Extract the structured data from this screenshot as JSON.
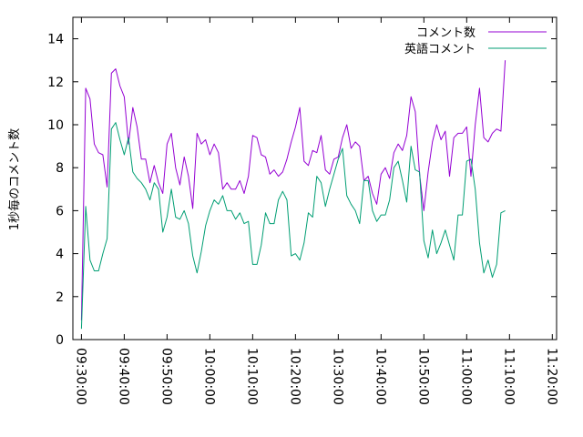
{
  "chart_data": {
    "type": "line",
    "ylabel": "1秒毎のコメント数",
    "xlabel": "",
    "ylim": [
      0,
      15
    ],
    "yticks": [
      0,
      2,
      4,
      6,
      8,
      10,
      12,
      14
    ],
    "xlim": [
      "09:28:00",
      "11:21:00"
    ],
    "xticks": [
      "09:30:00",
      "09:40:00",
      "09:50:00",
      "10:00:00",
      "10:10:00",
      "10:20:00",
      "10:30:00",
      "10:40:00",
      "10:50:00",
      "11:00:00",
      "11:10:00",
      "11:20:00"
    ],
    "legend_position": "top-right",
    "grid": false,
    "series": [
      {
        "name": "コメント数",
        "color": "#9400d3",
        "points": [
          [
            "09:30:00",
            0.9
          ],
          [
            "09:31:00",
            11.7
          ],
          [
            "09:32:00",
            11.2
          ],
          [
            "09:33:00",
            9.1
          ],
          [
            "09:34:00",
            8.7
          ],
          [
            "09:35:00",
            8.6
          ],
          [
            "09:36:00",
            7.1
          ],
          [
            "09:37:00",
            12.4
          ],
          [
            "09:38:00",
            12.6
          ],
          [
            "09:39:00",
            11.8
          ],
          [
            "09:40:00",
            11.3
          ],
          [
            "09:41:00",
            9.1
          ],
          [
            "09:42:00",
            10.8
          ],
          [
            "09:43:00",
            9.9
          ],
          [
            "09:44:00",
            8.4
          ],
          [
            "09:45:00",
            8.4
          ],
          [
            "09:46:00",
            7.3
          ],
          [
            "09:47:00",
            8.1
          ],
          [
            "09:48:00",
            7.3
          ],
          [
            "09:49:00",
            6.8
          ],
          [
            "09:50:00",
            9.1
          ],
          [
            "09:51:00",
            9.6
          ],
          [
            "09:52:00",
            8.0
          ],
          [
            "09:53:00",
            7.2
          ],
          [
            "09:54:00",
            8.5
          ],
          [
            "09:55:00",
            7.6
          ],
          [
            "09:56:00",
            6.1
          ],
          [
            "09:57:00",
            9.6
          ],
          [
            "09:58:00",
            9.1
          ],
          [
            "09:59:00",
            9.3
          ],
          [
            "10:00:00",
            8.6
          ],
          [
            "10:01:00",
            9.1
          ],
          [
            "10:02:00",
            8.7
          ],
          [
            "10:03:00",
            7.0
          ],
          [
            "10:04:00",
            7.3
          ],
          [
            "10:05:00",
            7.0
          ],
          [
            "10:06:00",
            7.0
          ],
          [
            "10:07:00",
            7.4
          ],
          [
            "10:08:00",
            6.8
          ],
          [
            "10:09:00",
            7.6
          ],
          [
            "10:10:00",
            9.5
          ],
          [
            "10:11:00",
            9.4
          ],
          [
            "10:12:00",
            8.6
          ],
          [
            "10:13:00",
            8.5
          ],
          [
            "10:14:00",
            7.7
          ],
          [
            "10:15:00",
            7.9
          ],
          [
            "10:16:00",
            7.6
          ],
          [
            "10:17:00",
            7.8
          ],
          [
            "10:18:00",
            8.4
          ],
          [
            "10:19:00",
            9.2
          ],
          [
            "10:20:00",
            9.9
          ],
          [
            "10:21:00",
            10.8
          ],
          [
            "10:22:00",
            8.3
          ],
          [
            "10:23:00",
            8.1
          ],
          [
            "10:24:00",
            8.8
          ],
          [
            "10:25:00",
            8.7
          ],
          [
            "10:26:00",
            9.5
          ],
          [
            "10:27:00",
            7.9
          ],
          [
            "10:28:00",
            7.7
          ],
          [
            "10:29:00",
            8.4
          ],
          [
            "10:30:00",
            8.5
          ],
          [
            "10:31:00",
            9.4
          ],
          [
            "10:32:00",
            10.0
          ],
          [
            "10:33:00",
            8.9
          ],
          [
            "10:34:00",
            9.2
          ],
          [
            "10:35:00",
            9.0
          ],
          [
            "10:36:00",
            7.4
          ],
          [
            "10:37:00",
            7.6
          ],
          [
            "10:38:00",
            6.8
          ],
          [
            "10:39:00",
            6.3
          ],
          [
            "10:40:00",
            7.7
          ],
          [
            "10:41:00",
            8.0
          ],
          [
            "10:42:00",
            7.5
          ],
          [
            "10:43:00",
            8.7
          ],
          [
            "10:44:00",
            9.1
          ],
          [
            "10:45:00",
            8.8
          ],
          [
            "10:46:00",
            9.5
          ],
          [
            "10:47:00",
            11.3
          ],
          [
            "10:48:00",
            10.6
          ],
          [
            "10:49:00",
            7.7
          ],
          [
            "10:50:00",
            6.0
          ],
          [
            "10:51:00",
            7.8
          ],
          [
            "10:52:00",
            9.2
          ],
          [
            "10:53:00",
            10.0
          ],
          [
            "10:54:00",
            9.3
          ],
          [
            "10:55:00",
            9.7
          ],
          [
            "10:56:00",
            7.6
          ],
          [
            "10:57:00",
            9.4
          ],
          [
            "10:58:00",
            9.6
          ],
          [
            "10:59:00",
            9.6
          ],
          [
            "11:00:00",
            9.9
          ],
          [
            "11:01:00",
            7.6
          ],
          [
            "11:02:00",
            10.0
          ],
          [
            "11:03:00",
            11.7
          ],
          [
            "11:04:00",
            9.4
          ],
          [
            "11:05:00",
            9.2
          ],
          [
            "11:06:00",
            9.6
          ],
          [
            "11:07:00",
            9.8
          ],
          [
            "11:08:00",
            9.7
          ],
          [
            "11:09:00",
            13.0
          ]
        ]
      },
      {
        "name": "英語コメント",
        "color": "#009e73",
        "points": [
          [
            "09:30:00",
            0.5
          ],
          [
            "09:31:00",
            6.2
          ],
          [
            "09:32:00",
            3.7
          ],
          [
            "09:33:00",
            3.2
          ],
          [
            "09:34:00",
            3.2
          ],
          [
            "09:35:00",
            4.0
          ],
          [
            "09:36:00",
            4.7
          ],
          [
            "09:37:00",
            9.8
          ],
          [
            "09:38:00",
            10.1
          ],
          [
            "09:39:00",
            9.3
          ],
          [
            "09:40:00",
            8.6
          ],
          [
            "09:41:00",
            9.4
          ],
          [
            "09:42:00",
            7.8
          ],
          [
            "09:43:00",
            7.5
          ],
          [
            "09:44:00",
            7.3
          ],
          [
            "09:45:00",
            7.0
          ],
          [
            "09:46:00",
            6.5
          ],
          [
            "09:47:00",
            7.3
          ],
          [
            "09:48:00",
            7.0
          ],
          [
            "09:49:00",
            5.0
          ],
          [
            "09:50:00",
            5.7
          ],
          [
            "09:51:00",
            7.0
          ],
          [
            "09:52:00",
            5.7
          ],
          [
            "09:53:00",
            5.6
          ],
          [
            "09:54:00",
            6.0
          ],
          [
            "09:55:00",
            5.4
          ],
          [
            "09:56:00",
            3.9
          ],
          [
            "09:57:00",
            3.1
          ],
          [
            "09:58:00",
            4.1
          ],
          [
            "09:59:00",
            5.3
          ],
          [
            "10:00:00",
            6.0
          ],
          [
            "10:01:00",
            6.5
          ],
          [
            "10:02:00",
            6.3
          ],
          [
            "10:03:00",
            6.7
          ],
          [
            "10:04:00",
            6.0
          ],
          [
            "10:05:00",
            6.0
          ],
          [
            "10:06:00",
            5.6
          ],
          [
            "10:07:00",
            5.9
          ],
          [
            "10:08:00",
            5.4
          ],
          [
            "10:09:00",
            5.5
          ],
          [
            "10:10:00",
            3.5
          ],
          [
            "10:11:00",
            3.5
          ],
          [
            "10:12:00",
            4.4
          ],
          [
            "10:13:00",
            5.9
          ],
          [
            "10:14:00",
            5.4
          ],
          [
            "10:15:00",
            5.4
          ],
          [
            "10:16:00",
            6.5
          ],
          [
            "10:17:00",
            6.9
          ],
          [
            "10:18:00",
            6.5
          ],
          [
            "10:19:00",
            3.9
          ],
          [
            "10:20:00",
            4.0
          ],
          [
            "10:21:00",
            3.7
          ],
          [
            "10:22:00",
            4.5
          ],
          [
            "10:23:00",
            5.9
          ],
          [
            "10:24:00",
            5.7
          ],
          [
            "10:25:00",
            7.6
          ],
          [
            "10:26:00",
            7.3
          ],
          [
            "10:27:00",
            6.2
          ],
          [
            "10:28:00",
            7.0
          ],
          [
            "10:29:00",
            7.7
          ],
          [
            "10:30:00",
            8.4
          ],
          [
            "10:31:00",
            8.9
          ],
          [
            "10:32:00",
            6.7
          ],
          [
            "10:33:00",
            6.3
          ],
          [
            "10:34:00",
            6.0
          ],
          [
            "10:35:00",
            5.4
          ],
          [
            "10:36:00",
            7.4
          ],
          [
            "10:37:00",
            7.4
          ],
          [
            "10:38:00",
            6.0
          ],
          [
            "10:39:00",
            5.5
          ],
          [
            "10:40:00",
            5.8
          ],
          [
            "10:41:00",
            5.8
          ],
          [
            "10:42:00",
            6.5
          ],
          [
            "10:43:00",
            8.0
          ],
          [
            "10:44:00",
            8.3
          ],
          [
            "10:45:00",
            7.4
          ],
          [
            "10:46:00",
            6.4
          ],
          [
            "10:47:00",
            9.0
          ],
          [
            "10:48:00",
            7.9
          ],
          [
            "10:49:00",
            7.8
          ],
          [
            "10:50:00",
            4.6
          ],
          [
            "10:51:00",
            3.8
          ],
          [
            "10:52:00",
            5.1
          ],
          [
            "10:53:00",
            4.0
          ],
          [
            "10:54:00",
            4.5
          ],
          [
            "10:55:00",
            5.1
          ],
          [
            "10:56:00",
            4.4
          ],
          [
            "10:57:00",
            3.7
          ],
          [
            "10:58:00",
            5.8
          ],
          [
            "10:59:00",
            5.8
          ],
          [
            "11:00:00",
            8.3
          ],
          [
            "11:01:00",
            8.4
          ],
          [
            "11:02:00",
            7.0
          ],
          [
            "11:03:00",
            4.5
          ],
          [
            "11:04:00",
            3.1
          ],
          [
            "11:05:00",
            3.7
          ],
          [
            "11:06:00",
            2.9
          ],
          [
            "11:07:00",
            3.5
          ],
          [
            "11:08:00",
            5.9
          ],
          [
            "11:09:00",
            6.0
          ]
        ]
      }
    ]
  }
}
